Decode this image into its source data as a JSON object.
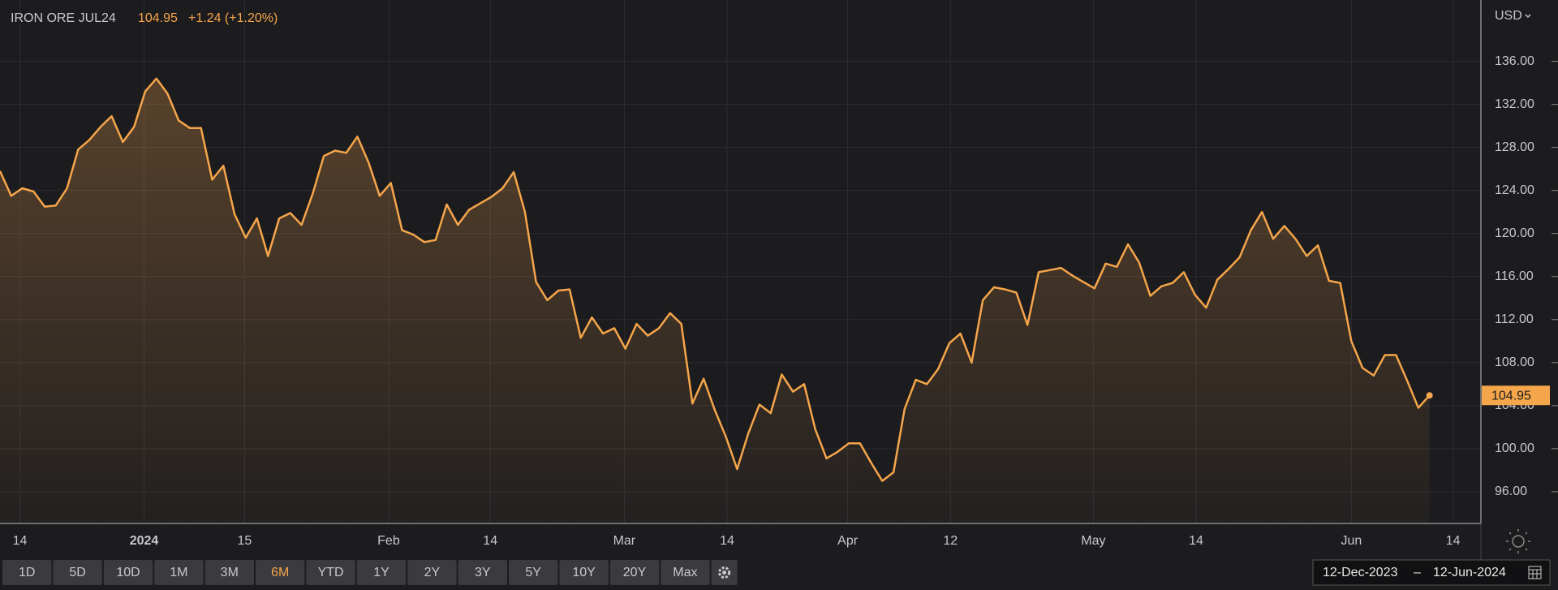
{
  "chart_data": {
    "type": "line",
    "title": "IRON ORE JUL24",
    "change": "+1.24 (+1.20%)",
    "currency": "USD",
    "color": "#f5a54a",
    "values": [
      125.8,
      123.5,
      124.2,
      123.9,
      122.5,
      122.6,
      124.2,
      127.8,
      128.7,
      129.9,
      130.9,
      128.5,
      129.9,
      133.2,
      134.4,
      133.0,
      130.5,
      129.8,
      129.8,
      125.0,
      126.3,
      121.8,
      119.6,
      121.4,
      117.9,
      121.4,
      121.9,
      120.8,
      123.7,
      127.2,
      127.7,
      127.5,
      129.0,
      126.6,
      123.5,
      124.7,
      120.3,
      119.9,
      119.2,
      119.4,
      122.7,
      120.8,
      122.2,
      122.8,
      123.4,
      124.2,
      125.7,
      122.0,
      115.5,
      113.8,
      114.7,
      114.8,
      110.3,
      112.2,
      110.7,
      111.2,
      109.3,
      111.6,
      110.5,
      111.2,
      112.6,
      111.6,
      104.2,
      106.5,
      103.6,
      101.1,
      98.1,
      101.4,
      104.1,
      103.3,
      106.9,
      105.3,
      106.0,
      101.8,
      99.1,
      99.7,
      100.5,
      100.5,
      98.7,
      97.0,
      97.8,
      103.7,
      106.4,
      106.0,
      107.4,
      109.8,
      110.7,
      108.0,
      113.8,
      115.0,
      114.8,
      114.5,
      111.5,
      116.4,
      116.6,
      116.8,
      116.1,
      115.5,
      114.9,
      117.2,
      116.9,
      119.0,
      117.3,
      114.2,
      115.1,
      115.4,
      116.4,
      114.3,
      113.1,
      115.7,
      116.7,
      117.8,
      120.3,
      122.0,
      119.5,
      120.7,
      119.5,
      117.9,
      118.9,
      115.6,
      115.4,
      110.0,
      107.5,
      106.8,
      108.7,
      108.7,
      106.3,
      103.8,
      104.95
    ],
    "xlim": [
      0,
      132.6
    ],
    "xticks": [
      {
        "value": 1.78,
        "label": "14"
      },
      {
        "value": 12.9,
        "label": "2024",
        "bold": true
      },
      {
        "value": 21.9,
        "label": "15"
      },
      {
        "value": 34.8,
        "label": "Feb"
      },
      {
        "value": 43.9,
        "label": "14"
      },
      {
        "value": 55.9,
        "label": "Mar"
      },
      {
        "value": 65.1,
        "label": "14"
      },
      {
        "value": 75.9,
        "label": "Apr"
      },
      {
        "value": 85.1,
        "label": "12"
      },
      {
        "value": 97.9,
        "label": "May"
      },
      {
        "value": 107.1,
        "label": "14"
      },
      {
        "value": 121.0,
        "label": "Jun"
      },
      {
        "value": 130.1,
        "label": "14"
      }
    ],
    "ylim": [
      93.05,
      141.7
    ],
    "yticks": [
      {
        "value": 96,
        "label": "96.00"
      },
      {
        "value": 100,
        "label": "100.00"
      },
      {
        "value": 104,
        "label": "104.00"
      },
      {
        "value": 108,
        "label": "108.00"
      },
      {
        "value": 112,
        "label": "112.00"
      },
      {
        "value": 116,
        "label": "116.00"
      },
      {
        "value": 120,
        "label": "120.00"
      },
      {
        "value": 124,
        "label": "124.00"
      },
      {
        "value": 128,
        "label": "128.00"
      },
      {
        "value": 132,
        "label": "132.00"
      },
      {
        "value": 136,
        "label": "136.00"
      }
    ],
    "grid": true
  },
  "range_buttons": [
    "1D",
    "5D",
    "10D",
    "1M",
    "3M",
    "6M",
    "YTD",
    "1Y",
    "2Y",
    "3Y",
    "5Y",
    "10Y",
    "20Y",
    "Max"
  ],
  "active_range": "6M",
  "date_range": {
    "start": "12-Dec-2023",
    "separator": "–",
    "end": "12-Jun-2024"
  }
}
